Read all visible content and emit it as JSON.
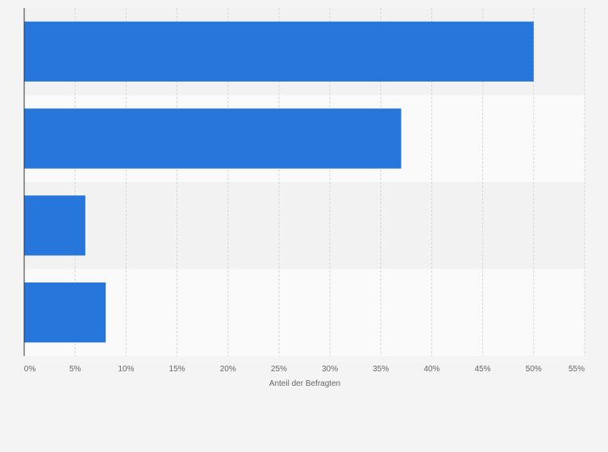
{
  "chart_data": {
    "type": "bar",
    "orientation": "horizontal",
    "categories": [
      "",
      "",
      "",
      ""
    ],
    "values": [
      50,
      37,
      6,
      8
    ],
    "xlabel": "Anteil der Befragten",
    "ylabel": "",
    "xlim": [
      0,
      55
    ],
    "x_ticks": [
      "0%",
      "5%",
      "10%",
      "15%",
      "20%",
      "25%",
      "30%",
      "35%",
      "40%",
      "45%",
      "50%",
      "55%"
    ],
    "grid": "vertical dashed",
    "bar_color": "#2776dc",
    "band_colors": [
      "#f2f2f2",
      "#fafafa"
    ]
  }
}
